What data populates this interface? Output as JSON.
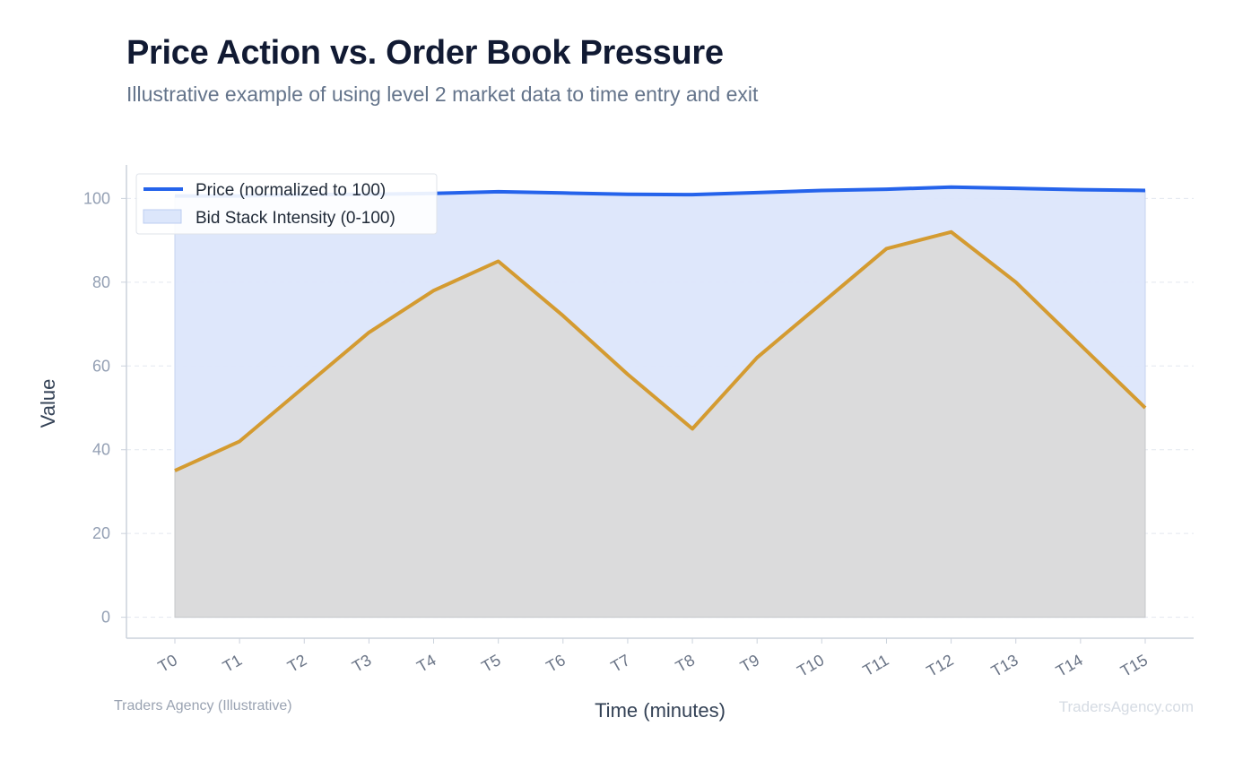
{
  "header": {
    "title": "Price Action vs. Order Book Pressure",
    "subtitle": "Illustrative example of using level 2 market data to time entry and exit"
  },
  "footer": {
    "source_left": "Traders Agency (Illustrative)",
    "source_right": "TradersAgency.com"
  },
  "colors": {
    "price_line": "#2563eb",
    "price_fill": "#dce6fb",
    "bid_line": "#d49b31",
    "bid_fill": "#dbdbdc"
  },
  "chart_data": {
    "type": "line",
    "title": "Price Action vs. Order Book Pressure",
    "subtitle": "Illustrative example of using level 2 market data to time entry and exit",
    "xlabel": "Time (minutes)",
    "ylabel": "Value",
    "categories": [
      "T0",
      "T1",
      "T2",
      "T3",
      "T4",
      "T5",
      "T6",
      "T7",
      "T8",
      "T9",
      "T10",
      "T11",
      "T12",
      "T13",
      "T14",
      "T15"
    ],
    "ylim": [
      -5,
      108
    ],
    "yticks": [
      0,
      20,
      40,
      60,
      80,
      100
    ],
    "grid": "horizontal dashed",
    "legend_position": "top-left",
    "series": [
      {
        "name": "Price (normalized to 100)",
        "style": "line with area fill",
        "values": [
          100.6,
          100.6,
          100.9,
          101.0,
          101.2,
          101.6,
          101.3,
          101.0,
          100.9,
          101.4,
          101.9,
          102.2,
          102.7,
          102.4,
          102.1,
          101.9
        ]
      },
      {
        "name": "Bid Stack Intensity (0-100)",
        "style": "area with line",
        "values": [
          35,
          42,
          55,
          68,
          78,
          85,
          72,
          58,
          45,
          62,
          75,
          88,
          92,
          80,
          65,
          50
        ]
      }
    ]
  }
}
